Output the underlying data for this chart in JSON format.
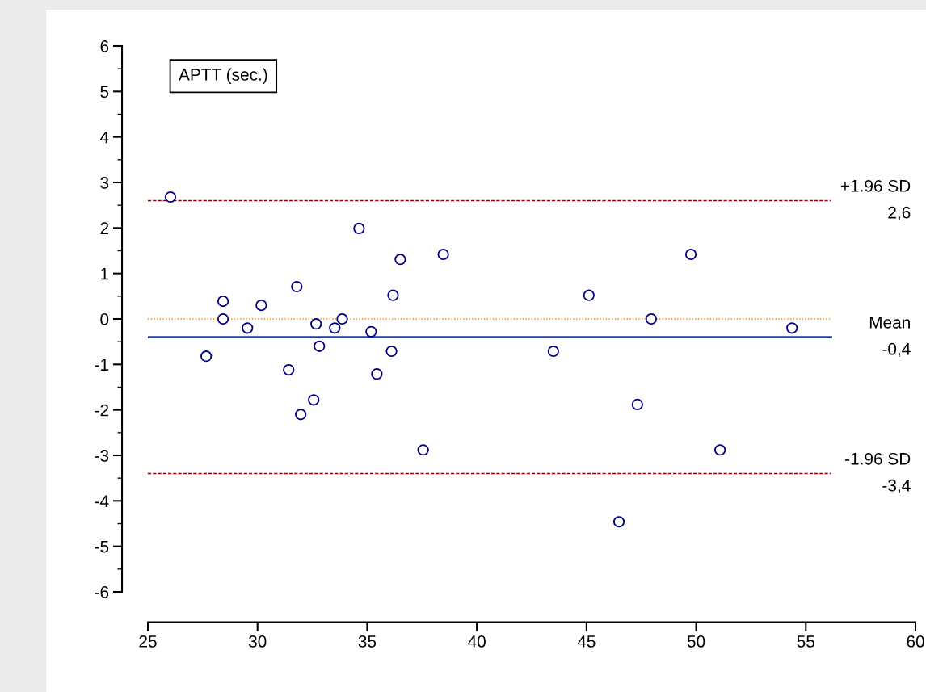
{
  "chart_data": {
    "type": "scatter",
    "marker": "circle",
    "grid": false,
    "legend": false,
    "x": [
      26.03,
      27.66,
      28.43,
      28.43,
      29.54,
      30.17,
      31.42,
      31.79,
      31.97,
      32.56,
      32.67,
      32.82,
      33.52,
      33.86,
      34.63,
      35.18,
      35.44,
      36.11,
      36.18,
      36.51,
      37.55,
      38.47,
      43.49,
      45.11,
      46.48,
      47.32,
      47.95,
      49.76,
      51.09,
      54.37
    ],
    "series": [
      {
        "color": "#000080",
        "values": [
          2.68,
          -0.82,
          0.39,
          0.0,
          -0.2,
          0.3,
          -1.12,
          0.71,
          -2.1,
          -1.78,
          -0.11,
          -0.6,
          -0.2,
          0.0,
          1.99,
          -0.28,
          -1.21,
          -0.71,
          0.52,
          1.31,
          -2.88,
          1.42,
          -0.71,
          0.52,
          -4.46,
          -1.88,
          0.0,
          1.42,
          -2.88,
          -0.2
        ]
      }
    ],
    "xlim": [
      25,
      60
    ],
    "xticks": [
      25,
      30,
      35,
      40,
      45,
      50,
      55,
      60
    ],
    "ylim": [
      -6,
      6
    ],
    "yticks": [
      -6,
      -5,
      -4,
      -3,
      -2,
      -1,
      0,
      1,
      2,
      3,
      4,
      5,
      6
    ],
    "ref_lines": [
      {
        "axis": "y",
        "value": 0,
        "color": "#ff8000",
        "line_style": "dotted"
      },
      {
        "axis": "y",
        "value": 2.6,
        "label": "+1.96 SD\n2,6",
        "color": "#8b0000",
        "line_style": "dashed"
      },
      {
        "axis": "y",
        "value": -0.4,
        "label": "Mean\n-0,4",
        "color": "#2b3990",
        "line_style": "solid"
      },
      {
        "axis": "y",
        "value": -3.4,
        "label": "-1.96 SD\n-3,4",
        "color": "#8b0000",
        "line_style": "dashed"
      }
    ],
    "annotations": [
      "APTT (sec.)"
    ]
  }
}
